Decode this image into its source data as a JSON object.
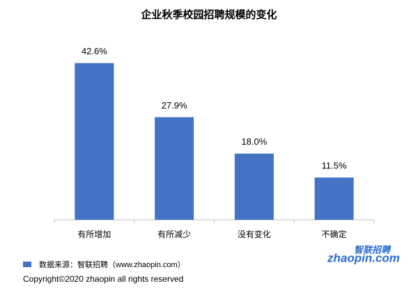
{
  "chart_data": {
    "type": "bar",
    "title": "企业秋季校园招聘规模的变化",
    "categories": [
      "有所增加",
      "有所减少",
      "没有变化",
      "不确定"
    ],
    "values": [
      42.6,
      27.9,
      18.0,
      11.5
    ],
    "value_labels": [
      "42.6%",
      "27.9%",
      "18.0%",
      "11.5%"
    ],
    "color": "#4472c4",
    "ylim": [
      0,
      45
    ]
  },
  "source": "数据来源：智联招聘（www.zhaopin.com）",
  "logo": {
    "domain": "zhaopin.com",
    "name": "智联招聘"
  },
  "copyright": "Copyright©2020  zhaopin all rights reserved"
}
